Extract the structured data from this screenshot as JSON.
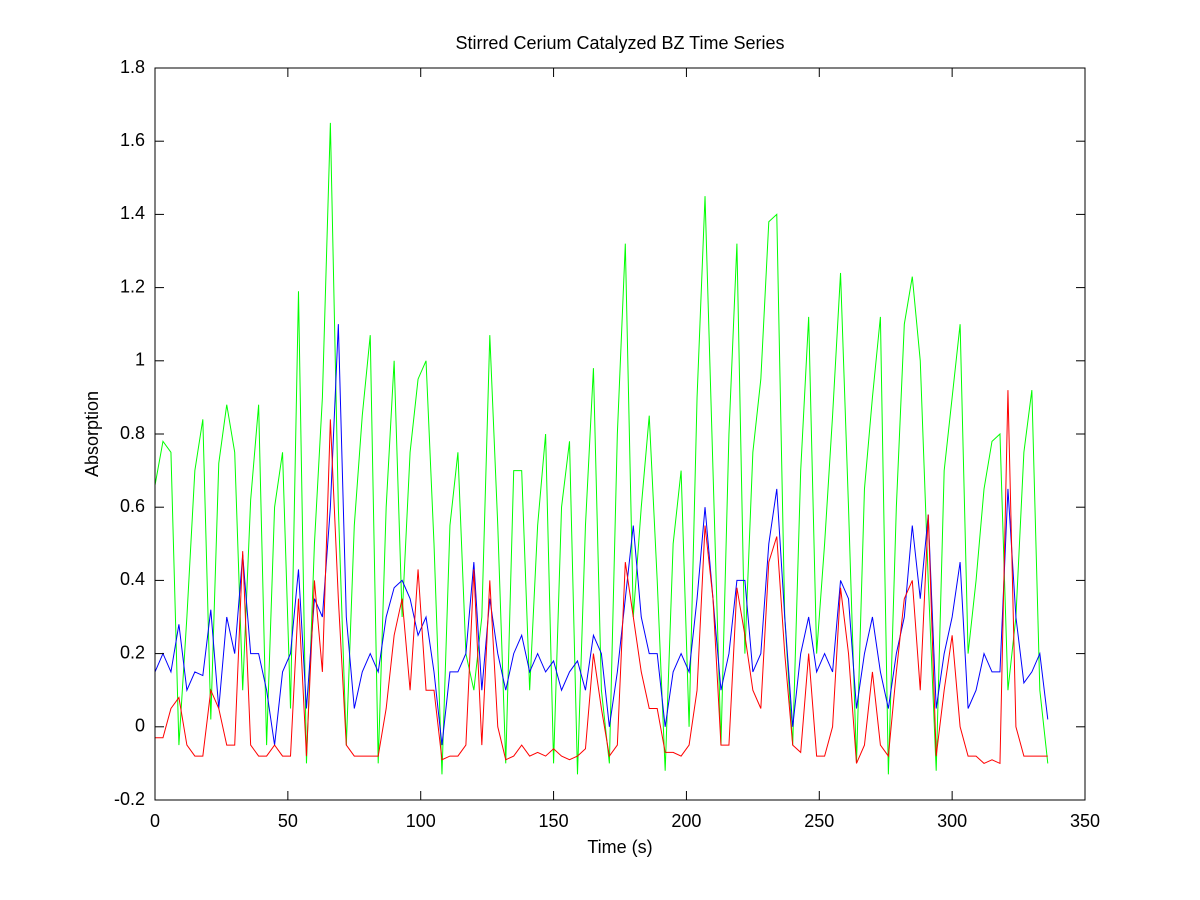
{
  "chart_data": {
    "type": "line",
    "title": "Stirred Cerium Catalyzed BZ Time Series",
    "x_label": "Time (s)",
    "y_label": "Absorption",
    "xlim": [
      0,
      350
    ],
    "ylim": [
      -0.2,
      1.8
    ],
    "xticks": [
      0,
      50,
      100,
      150,
      200,
      250,
      300,
      350
    ],
    "yticks": [
      -0.2,
      0,
      0.2,
      0.4,
      0.6,
      0.8,
      1,
      1.2,
      1.4,
      1.6,
      1.8
    ],
    "grid": false,
    "x": [
      0,
      3,
      6,
      9,
      12,
      15,
      18,
      21,
      24,
      27,
      30,
      33,
      36,
      39,
      42,
      45,
      48,
      51,
      54,
      57,
      60,
      63,
      66,
      69,
      72,
      75,
      78,
      81,
      84,
      87,
      90,
      93,
      96,
      99,
      102,
      105,
      108,
      111,
      114,
      117,
      120,
      123,
      126,
      129,
      132,
      135,
      138,
      141,
      144,
      147,
      150,
      153,
      156,
      159,
      162,
      165,
      168,
      171,
      174,
      177,
      180,
      183,
      186,
      189,
      192,
      195,
      198,
      201,
      204,
      207,
      210,
      213,
      216,
      219,
      222,
      225,
      228,
      231,
      234,
      237,
      240,
      243,
      246,
      249,
      252,
      255,
      258,
      261,
      264,
      267,
      270,
      273,
      276,
      279,
      282,
      285,
      288,
      291,
      294,
      297,
      300,
      303,
      306,
      309,
      312,
      315,
      318,
      321,
      324,
      327,
      330,
      333,
      336
    ],
    "series": [
      {
        "color": "#00ff00",
        "values": [
          0.66,
          0.78,
          0.75,
          -0.05,
          0.3,
          0.7,
          0.84,
          0.02,
          0.72,
          0.88,
          0.75,
          0.1,
          0.62,
          0.88,
          -0.05,
          0.6,
          0.75,
          0.05,
          1.19,
          -0.1,
          0.5,
          0.9,
          1.65,
          0.6,
          -0.05,
          0.55,
          0.85,
          1.07,
          -0.1,
          0.6,
          1.0,
          0.3,
          0.75,
          0.95,
          1.0,
          0.5,
          -0.13,
          0.55,
          0.75,
          0.2,
          0.1,
          0.3,
          1.07,
          0.55,
          -0.1,
          0.7,
          0.7,
          0.1,
          0.55,
          0.8,
          -0.1,
          0.6,
          0.78,
          -0.13,
          0.55,
          0.98,
          0.1,
          -0.1,
          0.8,
          1.32,
          0.3,
          0.6,
          0.85,
          0.4,
          -0.12,
          0.5,
          0.7,
          0.0,
          0.9,
          1.45,
          0.7,
          -0.05,
          0.8,
          1.32,
          0.2,
          0.75,
          0.95,
          1.38,
          1.4,
          0.3,
          -0.05,
          0.7,
          1.12,
          0.2,
          0.5,
          0.85,
          1.24,
          0.6,
          -0.1,
          0.65,
          0.9,
          1.12,
          -0.13,
          0.6,
          1.1,
          1.23,
          1.0,
          0.4,
          -0.12,
          0.7,
          0.9,
          1.1,
          0.2,
          0.4,
          0.65,
          0.78,
          0.8,
          0.1,
          0.3,
          0.75,
          0.92,
          0.1,
          -0.1
        ]
      },
      {
        "color": "#0000ff",
        "values": [
          0.15,
          0.2,
          0.15,
          0.28,
          0.1,
          0.15,
          0.14,
          0.32,
          0.05,
          0.3,
          0.2,
          0.47,
          0.2,
          0.2,
          0.1,
          -0.05,
          0.15,
          0.2,
          0.43,
          0.05,
          0.35,
          0.3,
          0.6,
          1.1,
          0.3,
          0.05,
          0.15,
          0.2,
          0.15,
          0.3,
          0.38,
          0.4,
          0.35,
          0.25,
          0.3,
          0.15,
          -0.05,
          0.15,
          0.15,
          0.2,
          0.45,
          0.1,
          0.35,
          0.2,
          0.1,
          0.2,
          0.25,
          0.15,
          0.2,
          0.15,
          0.18,
          0.1,
          0.15,
          0.18,
          0.1,
          0.25,
          0.2,
          0.0,
          0.15,
          0.35,
          0.55,
          0.3,
          0.2,
          0.2,
          0.0,
          0.15,
          0.2,
          0.15,
          0.35,
          0.6,
          0.35,
          0.1,
          0.2,
          0.4,
          0.4,
          0.15,
          0.2,
          0.5,
          0.65,
          0.3,
          0.0,
          0.2,
          0.3,
          0.15,
          0.2,
          0.15,
          0.4,
          0.35,
          0.05,
          0.2,
          0.3,
          0.15,
          0.05,
          0.2,
          0.3,
          0.55,
          0.35,
          0.58,
          0.05,
          0.2,
          0.3,
          0.45,
          0.05,
          0.1,
          0.2,
          0.15,
          0.15,
          0.65,
          0.3,
          0.12,
          0.15,
          0.2,
          0.02
        ]
      },
      {
        "color": "#ff0000",
        "values": [
          -0.03,
          -0.03,
          0.05,
          0.08,
          -0.05,
          -0.08,
          -0.08,
          0.1,
          0.05,
          -0.05,
          -0.05,
          0.48,
          -0.05,
          -0.08,
          -0.08,
          -0.05,
          -0.08,
          -0.08,
          0.35,
          -0.08,
          0.4,
          0.15,
          0.84,
          0.35,
          -0.05,
          -0.08,
          -0.08,
          -0.08,
          -0.08,
          0.05,
          0.25,
          0.35,
          0.1,
          0.43,
          0.1,
          0.1,
          -0.09,
          -0.08,
          -0.08,
          -0.05,
          0.43,
          -0.05,
          0.4,
          0.0,
          -0.09,
          -0.08,
          -0.05,
          -0.08,
          -0.07,
          -0.08,
          -0.06,
          -0.08,
          -0.09,
          -0.08,
          -0.06,
          0.2,
          0.05,
          -0.08,
          -0.05,
          0.45,
          0.3,
          0.15,
          0.05,
          0.05,
          -0.07,
          -0.07,
          -0.08,
          -0.05,
          0.1,
          0.55,
          0.35,
          -0.05,
          -0.05,
          0.38,
          0.25,
          0.1,
          0.05,
          0.45,
          0.52,
          0.2,
          -0.05,
          -0.07,
          0.2,
          -0.08,
          -0.08,
          0.0,
          0.38,
          0.2,
          -0.1,
          -0.05,
          0.15,
          -0.05,
          -0.08,
          0.15,
          0.35,
          0.4,
          0.1,
          0.58,
          -0.08,
          0.1,
          0.25,
          0.0,
          -0.08,
          -0.08,
          -0.1,
          -0.09,
          -0.1,
          0.92,
          0.0,
          -0.08,
          -0.08,
          -0.08,
          -0.08
        ]
      }
    ]
  }
}
